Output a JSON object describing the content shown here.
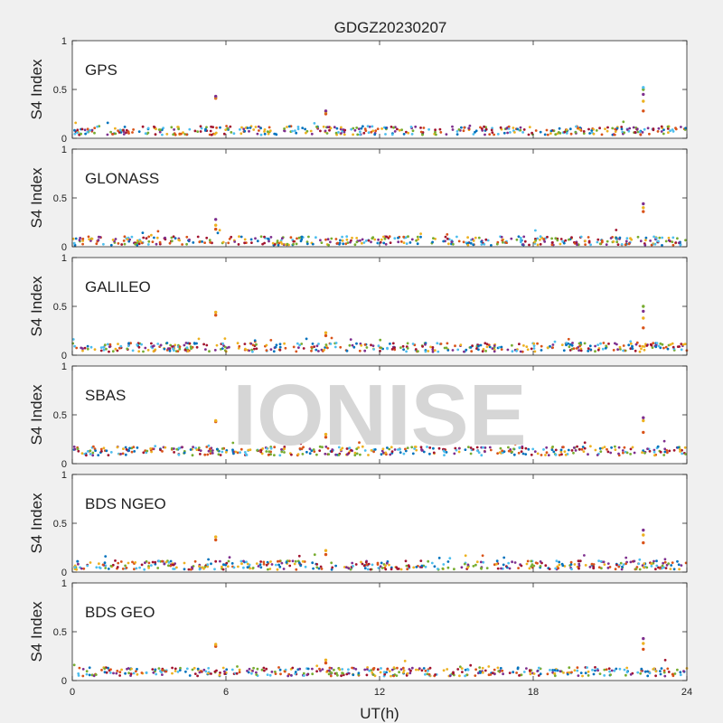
{
  "chart_data": {
    "type": "scatter",
    "title": "GDGZ20230207",
    "xlabel": "UT(h)",
    "ylabel": "S4 Index",
    "xlim": [
      0,
      24
    ],
    "ylim": [
      0,
      1
    ],
    "xticks": [
      0,
      6,
      12,
      18,
      24
    ],
    "yticks": [
      0,
      0.5,
      1
    ],
    "watermark": "IONISE",
    "series_colors": [
      "#0072BD",
      "#D95319",
      "#EDB120",
      "#7E2F8E",
      "#77AC30",
      "#4DBEEE",
      "#A2142F"
    ],
    "panels": [
      {
        "label": "GPS",
        "baseline": 0.08,
        "spikes": [
          {
            "x": 5.6,
            "values": [
              0.41,
              0.42,
              0.43
            ]
          },
          {
            "x": 9.9,
            "values": [
              0.25,
              0.27,
              0.28
            ]
          },
          {
            "x": 22.3,
            "values": [
              0.28,
              0.38,
              0.45,
              0.5,
              0.52
            ]
          }
        ]
      },
      {
        "label": "GLONASS",
        "baseline": 0.06,
        "spikes": [
          {
            "x": 5.6,
            "values": [
              0.18,
              0.22,
              0.28
            ]
          },
          {
            "x": 22.3,
            "values": [
              0.36,
              0.4,
              0.44
            ]
          }
        ]
      },
      {
        "label": "GALILEO",
        "baseline": 0.08,
        "spikes": [
          {
            "x": 5.6,
            "values": [
              0.41,
              0.44
            ]
          },
          {
            "x": 9.9,
            "values": [
              0.2,
              0.23
            ]
          },
          {
            "x": 22.3,
            "values": [
              0.28,
              0.38,
              0.45,
              0.5
            ]
          }
        ]
      },
      {
        "label": "SBAS",
        "baseline": 0.13,
        "spikes": [
          {
            "x": 5.6,
            "values": [
              0.43,
              0.44
            ]
          },
          {
            "x": 9.9,
            "values": [
              0.27,
              0.3
            ]
          },
          {
            "x": 22.3,
            "values": [
              0.32,
              0.44,
              0.47
            ]
          }
        ]
      },
      {
        "label": "BDS NGEO",
        "baseline": 0.07,
        "spikes": [
          {
            "x": 5.6,
            "values": [
              0.33,
              0.36
            ]
          },
          {
            "x": 9.9,
            "values": [
              0.18,
              0.22
            ]
          },
          {
            "x": 22.3,
            "values": [
              0.3,
              0.38,
              0.43
            ]
          }
        ]
      },
      {
        "label": "BDS GEO",
        "baseline": 0.09,
        "spikes": [
          {
            "x": 5.6,
            "values": [
              0.35,
              0.37
            ]
          },
          {
            "x": 9.9,
            "values": [
              0.18,
              0.21
            ]
          },
          {
            "x": 22.3,
            "values": [
              0.32,
              0.38,
              0.43
            ]
          }
        ]
      }
    ]
  }
}
